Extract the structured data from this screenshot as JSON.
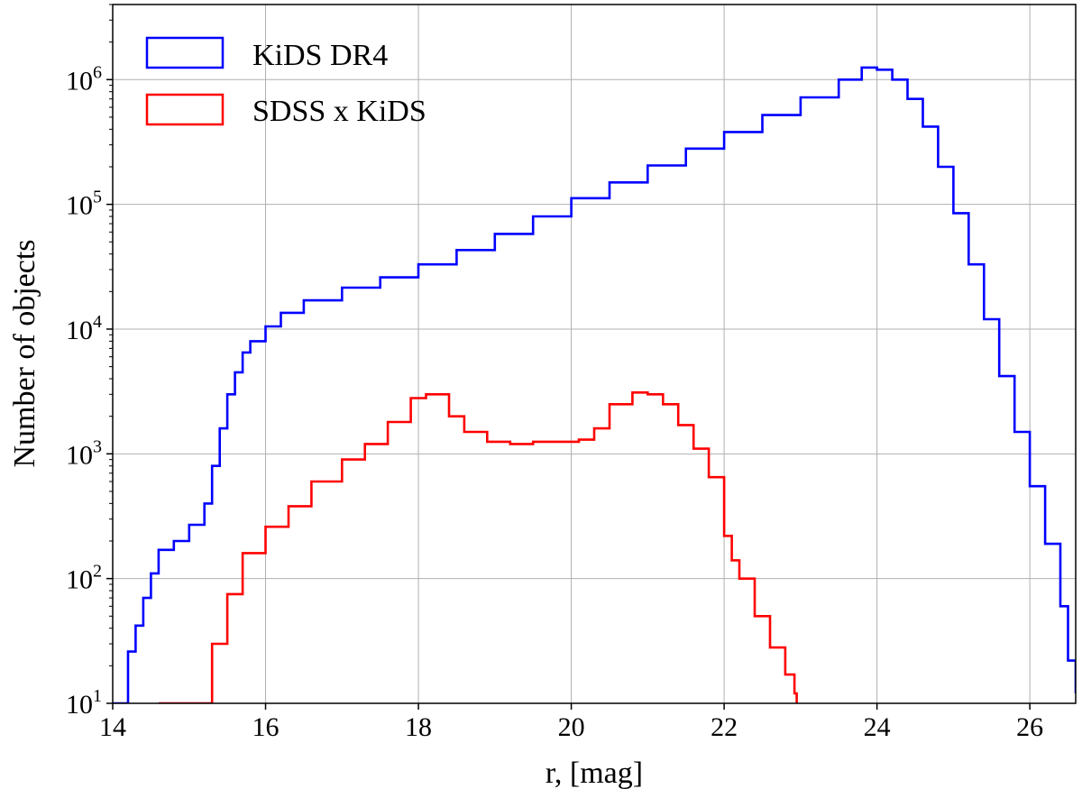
{
  "chart_data": {
    "type": "step",
    "xlabel": "r, [mag]",
    "ylabel": "Number of objects",
    "xlim": [
      14,
      26.6
    ],
    "ylim": [
      10,
      4000000
    ],
    "yscale": "log",
    "grid": true,
    "legend_position": "top-left",
    "x_ticks": [
      {
        "value": 14,
        "label": "14"
      },
      {
        "value": 16,
        "label": "16"
      },
      {
        "value": 18,
        "label": "18"
      },
      {
        "value": 20,
        "label": "20"
      },
      {
        "value": 22,
        "label": "22"
      },
      {
        "value": 24,
        "label": "24"
      },
      {
        "value": 26,
        "label": "26"
      }
    ],
    "y_ticks": [
      {
        "value": 10,
        "base": "10",
        "exp": "1"
      },
      {
        "value": 100,
        "base": "10",
        "exp": "2"
      },
      {
        "value": 1000,
        "base": "10",
        "exp": "3"
      },
      {
        "value": 10000,
        "base": "10",
        "exp": "4"
      },
      {
        "value": 100000,
        "base": "10",
        "exp": "5"
      },
      {
        "value": 1000000,
        "base": "10",
        "exp": "6"
      }
    ],
    "series": [
      {
        "name": "KiDS DR4",
        "color": "#0000ff",
        "points": [
          [
            14.0,
            10
          ],
          [
            14.2,
            26
          ],
          [
            14.3,
            42
          ],
          [
            14.4,
            70
          ],
          [
            14.5,
            110
          ],
          [
            14.6,
            170
          ],
          [
            14.8,
            200
          ],
          [
            15.0,
            270
          ],
          [
            15.2,
            400
          ],
          [
            15.3,
            800
          ],
          [
            15.4,
            1600
          ],
          [
            15.5,
            3000
          ],
          [
            15.6,
            4500
          ],
          [
            15.7,
            6500
          ],
          [
            15.8,
            8000
          ],
          [
            16.0,
            10500
          ],
          [
            16.2,
            13500
          ],
          [
            16.5,
            17000
          ],
          [
            17.0,
            21500
          ],
          [
            17.5,
            26000
          ],
          [
            18.0,
            33000
          ],
          [
            18.5,
            43000
          ],
          [
            19.0,
            58000
          ],
          [
            19.5,
            80000
          ],
          [
            20.0,
            112000
          ],
          [
            20.5,
            150000
          ],
          [
            21.0,
            205000
          ],
          [
            21.5,
            280000
          ],
          [
            22.0,
            380000
          ],
          [
            22.5,
            520000
          ],
          [
            23.0,
            720000
          ],
          [
            23.5,
            1000000
          ],
          [
            23.8,
            1250000
          ],
          [
            24.0,
            1200000
          ],
          [
            24.2,
            1000000
          ],
          [
            24.4,
            700000
          ],
          [
            24.6,
            420000
          ],
          [
            24.8,
            200000
          ],
          [
            25.0,
            85000
          ],
          [
            25.2,
            33000
          ],
          [
            25.4,
            12000
          ],
          [
            25.6,
            4200
          ],
          [
            25.8,
            1500
          ],
          [
            26.0,
            550
          ],
          [
            26.2,
            190
          ],
          [
            26.4,
            60
          ],
          [
            26.5,
            22
          ],
          [
            26.6,
            12
          ]
        ]
      },
      {
        "name": "SDSS x KiDS",
        "color": "#ff0000",
        "points": [
          [
            14.6,
            10
          ],
          [
            14.8,
            10
          ],
          [
            15.0,
            10
          ],
          [
            15.3,
            30
          ],
          [
            15.5,
            75
          ],
          [
            15.7,
            160
          ],
          [
            16.0,
            260
          ],
          [
            16.3,
            380
          ],
          [
            16.6,
            600
          ],
          [
            17.0,
            900
          ],
          [
            17.3,
            1200
          ],
          [
            17.6,
            1800
          ],
          [
            17.9,
            2800
          ],
          [
            18.1,
            3000
          ],
          [
            18.4,
            2000
          ],
          [
            18.6,
            1500
          ],
          [
            18.9,
            1250
          ],
          [
            19.2,
            1200
          ],
          [
            19.5,
            1250
          ],
          [
            19.8,
            1250
          ],
          [
            20.1,
            1300
          ],
          [
            20.3,
            1600
          ],
          [
            20.5,
            2500
          ],
          [
            20.8,
            3100
          ],
          [
            21.0,
            3000
          ],
          [
            21.2,
            2500
          ],
          [
            21.4,
            1700
          ],
          [
            21.6,
            1100
          ],
          [
            21.8,
            650
          ],
          [
            22.0,
            220
          ],
          [
            22.1,
            140
          ],
          [
            22.2,
            100
          ],
          [
            22.4,
            50
          ],
          [
            22.6,
            28
          ],
          [
            22.8,
            17
          ],
          [
            22.92,
            12
          ],
          [
            22.95,
            10
          ]
        ]
      }
    ]
  }
}
